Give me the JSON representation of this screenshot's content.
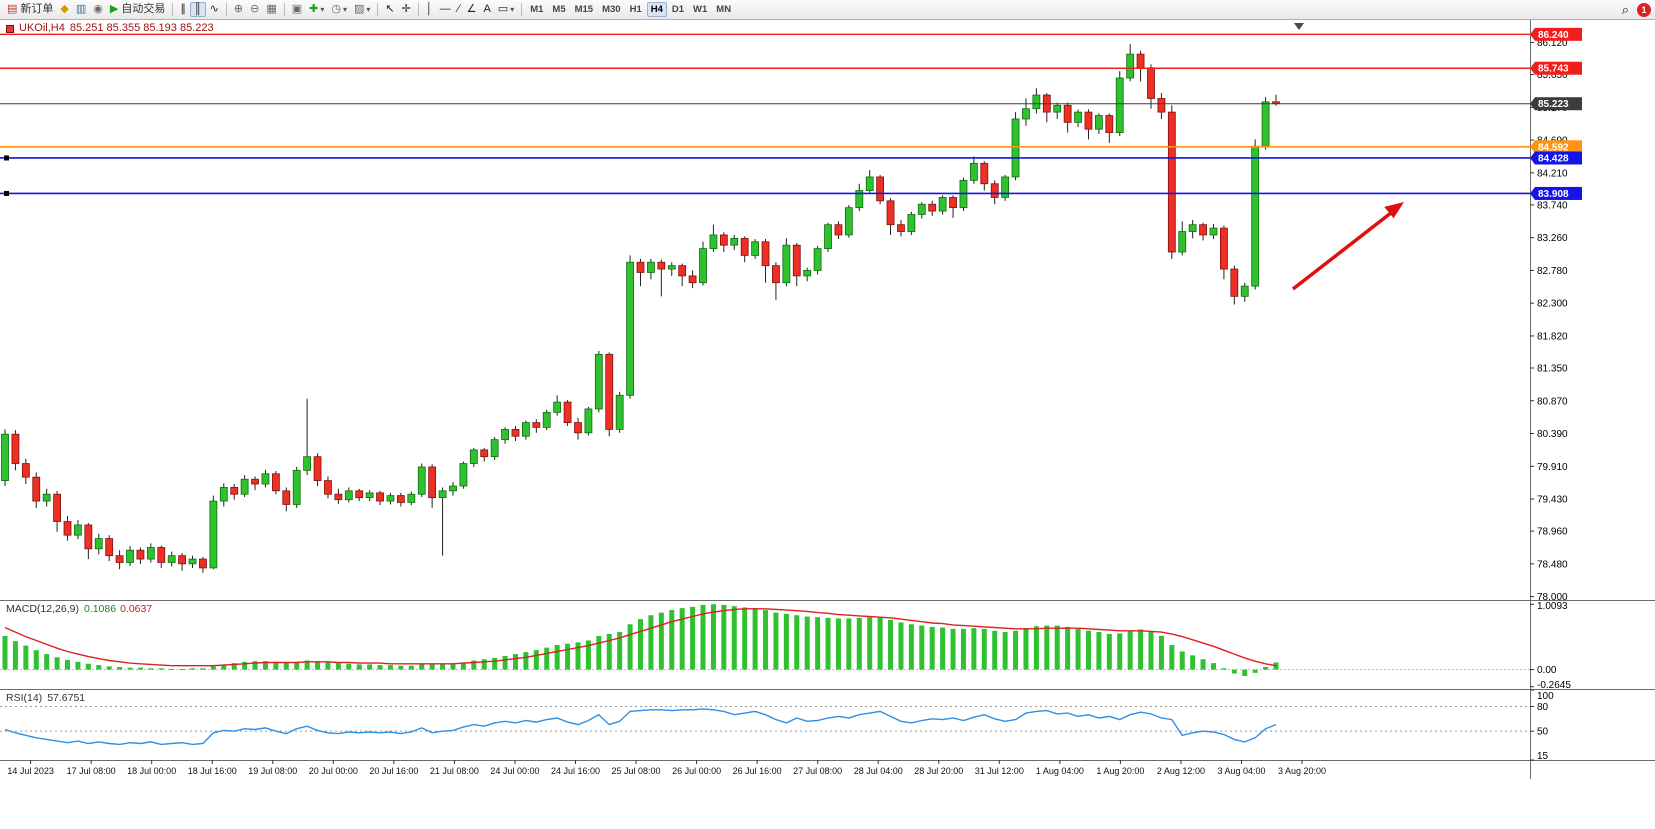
{
  "toolbar": {
    "new_order_label": "新订单",
    "autotrading_label": "自动交易",
    "timeframes": [
      "M1",
      "M5",
      "M15",
      "M30",
      "H1",
      "H4",
      "D1",
      "W1",
      "MN"
    ],
    "active_timeframe": "H4",
    "notification_count": "1",
    "icons": {
      "new_order": "▤",
      "metaeditor": "◆",
      "charts": "▥",
      "community": "◉",
      "autotrading": "▶",
      "bar_chart": "∥",
      "candle_chart": "║",
      "line_chart": "∿",
      "zoom_in": "⊕",
      "zoom_out": "⊖",
      "grid": "▦",
      "tile_windows": "▣",
      "indicators": "✚",
      "periods": "◷",
      "templates": "▨",
      "cursor": "↖",
      "crosshair": "✛",
      "vline": "│",
      "hline": "—",
      "trendline": "∕",
      "channel": "∠",
      "text": "A",
      "shapes": "▭",
      "caret": "▾",
      "search": "⌕"
    }
  },
  "chart": {
    "symbol_period": "UKOil,H4",
    "ohlc": "85.251 85.355 85.193 85.223",
    "levels": [
      {
        "price": 86.24,
        "label": "86.240",
        "color": "#f21d1d",
        "width": 1.4
      },
      {
        "price": 85.743,
        "label": "85.743",
        "color": "#f21d1d",
        "width": 1.4
      },
      {
        "price": 85.223,
        "label": "85.223",
        "color": "#3c3c3c",
        "width": 1.0
      },
      {
        "price": 84.592,
        "label": "84.592",
        "color": "#ff9414",
        "width": 1.6
      },
      {
        "price": 84.428,
        "label": "84.428",
        "color": "#1414e8",
        "width": 1.6,
        "handles": true
      },
      {
        "price": 83.908,
        "label": "83.908",
        "color": "#1414e8",
        "width": 1.6,
        "handles": true
      }
    ],
    "price_axis_labels": [
      "86.120",
      "85.650",
      "85.170",
      "84.690",
      "84.210",
      "83.740",
      "83.260",
      "82.780",
      "82.300",
      "81.820",
      "81.350",
      "80.870",
      "80.390",
      "79.910",
      "79.430",
      "78.960",
      "78.480",
      "78.000"
    ],
    "time_axis_labels": [
      "14 Jul 2023",
      "17 Jul 08:00",
      "18 Jul 00:00",
      "18 Jul 16:00",
      "19 Jul 08:00",
      "20 Jul 00:00",
      "20 Jul 16:00",
      "21 Jul 08:00",
      "24 Jul 00:00",
      "24 Jul 16:00",
      "25 Jul 08:00",
      "26 Jul 00:00",
      "26 Jul 16:00",
      "27 Jul 08:00",
      "28 Jul 04:00",
      "28 Jul 20:00",
      "31 Jul 12:00",
      "1 Aug 04:00",
      "1 Aug 20:00",
      "2 Aug 12:00",
      "3 Aug 04:00",
      "3 Aug 20:00"
    ]
  },
  "chart_data": {
    "type": "candlestick",
    "symbol": "UKOil",
    "period": "H4",
    "price_range": [
      77.95,
      86.45
    ],
    "up_color": "#2fc12f",
    "down_color": "#ee3024",
    "candles": [
      [
        79.7,
        80.45,
        79.62,
        80.38
      ],
      [
        80.38,
        80.44,
        79.85,
        79.95
      ],
      [
        79.95,
        80.02,
        79.65,
        79.75
      ],
      [
        79.75,
        79.82,
        79.3,
        79.4
      ],
      [
        79.4,
        79.58,
        79.32,
        79.5
      ],
      [
        79.5,
        79.55,
        78.95,
        79.1
      ],
      [
        79.1,
        79.18,
        78.82,
        78.9
      ],
      [
        78.9,
        79.12,
        78.84,
        79.05
      ],
      [
        79.05,
        79.08,
        78.55,
        78.7
      ],
      [
        78.7,
        78.92,
        78.62,
        78.85
      ],
      [
        78.85,
        78.9,
        78.52,
        78.6
      ],
      [
        78.6,
        78.68,
        78.4,
        78.5
      ],
      [
        78.5,
        78.74,
        78.45,
        78.68
      ],
      [
        78.68,
        78.72,
        78.48,
        78.55
      ],
      [
        78.55,
        78.78,
        78.5,
        78.72
      ],
      [
        78.72,
        78.75,
        78.42,
        78.5
      ],
      [
        78.5,
        78.66,
        78.44,
        78.6
      ],
      [
        78.6,
        78.64,
        78.38,
        78.48
      ],
      [
        78.48,
        78.6,
        78.42,
        78.55
      ],
      [
        78.55,
        78.58,
        78.35,
        78.42
      ],
      [
        78.42,
        79.48,
        78.4,
        79.4
      ],
      [
        79.4,
        79.66,
        79.32,
        79.6
      ],
      [
        79.6,
        79.65,
        79.42,
        79.5
      ],
      [
        79.5,
        79.78,
        79.46,
        79.72
      ],
      [
        79.72,
        79.76,
        79.56,
        79.65
      ],
      [
        79.65,
        79.86,
        79.6,
        79.8
      ],
      [
        79.8,
        79.84,
        79.5,
        79.55
      ],
      [
        79.55,
        79.6,
        79.25,
        79.35
      ],
      [
        79.35,
        79.9,
        79.3,
        79.85
      ],
      [
        79.85,
        80.9,
        79.78,
        80.05
      ],
      [
        80.05,
        80.1,
        79.62,
        79.7
      ],
      [
        79.7,
        79.76,
        79.44,
        79.5
      ],
      [
        79.5,
        79.58,
        79.36,
        79.42
      ],
      [
        79.42,
        79.6,
        79.38,
        79.55
      ],
      [
        79.55,
        79.58,
        79.4,
        79.45
      ],
      [
        79.45,
        79.56,
        79.4,
        79.52
      ],
      [
        79.52,
        79.55,
        79.34,
        79.4
      ],
      [
        79.4,
        79.52,
        79.35,
        79.48
      ],
      [
        79.48,
        79.52,
        79.32,
        79.38
      ],
      [
        79.38,
        79.54,
        79.34,
        79.5
      ],
      [
        79.5,
        79.95,
        79.46,
        79.9
      ],
      [
        79.9,
        79.94,
        79.3,
        79.45
      ],
      [
        79.45,
        79.6,
        78.6,
        79.55
      ],
      [
        79.55,
        79.68,
        79.48,
        79.62
      ],
      [
        79.62,
        79.98,
        79.58,
        79.95
      ],
      [
        79.95,
        80.18,
        79.9,
        80.15
      ],
      [
        80.15,
        80.18,
        79.98,
        80.05
      ],
      [
        80.05,
        80.34,
        80.0,
        80.3
      ],
      [
        80.3,
        80.48,
        80.24,
        80.45
      ],
      [
        80.45,
        80.5,
        80.28,
        80.35
      ],
      [
        80.35,
        80.58,
        80.3,
        80.55
      ],
      [
        80.55,
        80.6,
        80.4,
        80.48
      ],
      [
        80.48,
        80.74,
        80.44,
        80.7
      ],
      [
        80.7,
        80.95,
        80.65,
        80.85
      ],
      [
        80.85,
        80.88,
        80.5,
        80.55
      ],
      [
        80.55,
        80.62,
        80.3,
        80.4
      ],
      [
        80.4,
        80.78,
        80.36,
        80.75
      ],
      [
        80.75,
        81.6,
        80.7,
        81.55
      ],
      [
        81.55,
        81.58,
        80.35,
        80.45
      ],
      [
        80.45,
        81.0,
        80.4,
        80.95
      ],
      [
        80.95,
        83.0,
        80.9,
        82.9
      ],
      [
        82.9,
        82.95,
        82.55,
        82.75
      ],
      [
        82.75,
        82.95,
        82.65,
        82.9
      ],
      [
        82.9,
        82.94,
        82.4,
        82.8
      ],
      [
        82.8,
        82.9,
        82.7,
        82.85
      ],
      [
        82.85,
        82.88,
        82.55,
        82.7
      ],
      [
        82.7,
        82.78,
        82.52,
        82.6
      ],
      [
        82.6,
        83.2,
        82.56,
        83.1
      ],
      [
        83.1,
        83.45,
        83.05,
        83.3
      ],
      [
        83.3,
        83.34,
        83.05,
        83.15
      ],
      [
        83.15,
        83.3,
        83.08,
        83.25
      ],
      [
        83.25,
        83.28,
        82.9,
        83.0
      ],
      [
        83.0,
        83.24,
        82.95,
        83.2
      ],
      [
        83.2,
        83.24,
        82.6,
        82.85
      ],
      [
        82.85,
        82.9,
        82.35,
        82.6
      ],
      [
        82.6,
        83.25,
        82.55,
        83.15
      ],
      [
        83.15,
        83.18,
        82.55,
        82.7
      ],
      [
        82.7,
        82.82,
        82.62,
        82.78
      ],
      [
        82.78,
        83.14,
        82.72,
        83.1
      ],
      [
        83.1,
        83.48,
        83.05,
        83.45
      ],
      [
        83.45,
        83.5,
        83.24,
        83.3
      ],
      [
        83.3,
        83.74,
        83.26,
        83.7
      ],
      [
        83.7,
        84.05,
        83.65,
        83.95
      ],
      [
        83.95,
        84.25,
        83.9,
        84.15
      ],
      [
        84.15,
        84.18,
        83.75,
        83.8
      ],
      [
        83.8,
        83.84,
        83.3,
        83.45
      ],
      [
        83.45,
        83.52,
        83.28,
        83.35
      ],
      [
        83.35,
        83.64,
        83.3,
        83.6
      ],
      [
        83.6,
        83.78,
        83.54,
        83.75
      ],
      [
        83.75,
        83.8,
        83.58,
        83.65
      ],
      [
        83.65,
        83.88,
        83.6,
        83.85
      ],
      [
        83.85,
        83.88,
        83.55,
        83.7
      ],
      [
        83.7,
        84.14,
        83.65,
        84.1
      ],
      [
        84.1,
        84.45,
        84.05,
        84.35
      ],
      [
        84.35,
        84.38,
        83.95,
        84.05
      ],
      [
        84.05,
        84.1,
        83.75,
        83.85
      ],
      [
        83.85,
        84.18,
        83.8,
        84.15
      ],
      [
        84.15,
        85.1,
        84.1,
        85.0
      ],
      [
        85.0,
        85.3,
        84.9,
        85.15
      ],
      [
        85.15,
        85.45,
        85.08,
        85.35
      ],
      [
        85.35,
        85.38,
        84.95,
        85.1
      ],
      [
        85.1,
        85.24,
        85.0,
        85.2
      ],
      [
        85.2,
        85.24,
        84.8,
        84.95
      ],
      [
        84.95,
        85.14,
        84.88,
        85.1
      ],
      [
        85.1,
        85.14,
        84.7,
        84.85
      ],
      [
        84.85,
        85.08,
        84.78,
        85.05
      ],
      [
        85.05,
        85.08,
        84.65,
        84.8
      ],
      [
        84.8,
        85.7,
        84.75,
        85.6
      ],
      [
        85.6,
        86.1,
        85.55,
        85.95
      ],
      [
        85.95,
        86.0,
        85.55,
        85.75
      ],
      [
        85.75,
        85.8,
        85.15,
        85.3
      ],
      [
        85.3,
        85.38,
        85.0,
        85.1
      ],
      [
        85.1,
        85.2,
        82.95,
        83.05
      ],
      [
        83.05,
        83.5,
        83.0,
        83.35
      ],
      [
        83.35,
        83.52,
        83.25,
        83.45
      ],
      [
        83.45,
        83.48,
        83.22,
        83.3
      ],
      [
        83.3,
        83.46,
        83.24,
        83.4
      ],
      [
        83.4,
        83.44,
        82.65,
        82.8
      ],
      [
        82.8,
        82.85,
        82.28,
        82.4
      ],
      [
        82.4,
        82.6,
        82.32,
        82.55
      ],
      [
        82.55,
        84.7,
        82.5,
        84.6
      ],
      [
        84.6,
        85.32,
        84.55,
        85.25
      ],
      [
        85.251,
        85.355,
        85.193,
        85.223
      ]
    ],
    "macd": {
      "label": "MACD(12,26,9)",
      "main_value": "0.1086",
      "signal_value": "0.0637",
      "axis_labels": [
        "1.0093",
        "0.00",
        "-0.2645"
      ],
      "range": [
        -0.3,
        1.06
      ],
      "histogram_color": "#2fc12f",
      "signal_color": "#e02020",
      "histogram": [
        0.52,
        0.44,
        0.37,
        0.3,
        0.24,
        0.19,
        0.15,
        0.12,
        0.09,
        0.07,
        0.05,
        0.04,
        0.03,
        0.03,
        0.02,
        0.02,
        0.01,
        0.01,
        0.02,
        0.02,
        0.05,
        0.08,
        0.1,
        0.12,
        0.13,
        0.13,
        0.12,
        0.11,
        0.12,
        0.14,
        0.13,
        0.12,
        0.1,
        0.09,
        0.08,
        0.08,
        0.07,
        0.07,
        0.06,
        0.06,
        0.08,
        0.09,
        0.08,
        0.09,
        0.11,
        0.14,
        0.16,
        0.18,
        0.21,
        0.24,
        0.27,
        0.3,
        0.34,
        0.38,
        0.4,
        0.42,
        0.45,
        0.52,
        0.55,
        0.58,
        0.7,
        0.78,
        0.84,
        0.88,
        0.92,
        0.95,
        0.97,
        1.0,
        1.01,
        1.0,
        0.98,
        0.96,
        0.95,
        0.92,
        0.88,
        0.86,
        0.84,
        0.82,
        0.81,
        0.8,
        0.79,
        0.79,
        0.8,
        0.81,
        0.8,
        0.77,
        0.73,
        0.7,
        0.68,
        0.66,
        0.65,
        0.63,
        0.63,
        0.64,
        0.63,
        0.6,
        0.58,
        0.6,
        0.64,
        0.67,
        0.68,
        0.68,
        0.66,
        0.63,
        0.6,
        0.58,
        0.55,
        0.56,
        0.6,
        0.62,
        0.58,
        0.52,
        0.38,
        0.28,
        0.22,
        0.16,
        0.1,
        0.02,
        -0.06,
        -0.1,
        -0.05,
        0.04,
        0.11
      ],
      "signal": [
        0.65,
        0.58,
        0.51,
        0.45,
        0.39,
        0.33,
        0.28,
        0.24,
        0.2,
        0.17,
        0.14,
        0.12,
        0.1,
        0.09,
        0.08,
        0.07,
        0.06,
        0.06,
        0.06,
        0.06,
        0.06,
        0.07,
        0.08,
        0.09,
        0.1,
        0.11,
        0.11,
        0.11,
        0.11,
        0.12,
        0.12,
        0.12,
        0.11,
        0.11,
        0.1,
        0.1,
        0.1,
        0.09,
        0.09,
        0.09,
        0.09,
        0.09,
        0.09,
        0.09,
        0.1,
        0.11,
        0.12,
        0.13,
        0.15,
        0.17,
        0.19,
        0.22,
        0.25,
        0.28,
        0.31,
        0.34,
        0.37,
        0.41,
        0.45,
        0.49,
        0.54,
        0.59,
        0.64,
        0.69,
        0.74,
        0.78,
        0.82,
        0.86,
        0.89,
        0.91,
        0.93,
        0.94,
        0.94,
        0.94,
        0.93,
        0.92,
        0.91,
        0.9,
        0.88,
        0.87,
        0.85,
        0.84,
        0.83,
        0.82,
        0.81,
        0.8,
        0.78,
        0.76,
        0.74,
        0.72,
        0.71,
        0.69,
        0.68,
        0.67,
        0.66,
        0.65,
        0.64,
        0.63,
        0.63,
        0.63,
        0.64,
        0.64,
        0.64,
        0.64,
        0.63,
        0.62,
        0.61,
        0.6,
        0.6,
        0.6,
        0.59,
        0.58,
        0.55,
        0.51,
        0.46,
        0.41,
        0.36,
        0.3,
        0.24,
        0.18,
        0.13,
        0.09,
        0.06
      ]
    },
    "rsi": {
      "label": "RSI(14)",
      "value": "57.6751",
      "axis_labels": [
        100,
        80,
        50,
        15
      ],
      "range": [
        15,
        100
      ],
      "levels": [
        80,
        50
      ],
      "color": "#2e8fe8",
      "series": [
        52,
        48,
        45,
        42,
        40,
        38,
        36,
        38,
        35,
        37,
        35,
        34,
        36,
        35,
        37,
        34,
        35,
        36,
        34,
        35,
        48,
        51,
        50,
        53,
        52,
        54,
        50,
        47,
        53,
        56,
        51,
        48,
        47,
        49,
        48,
        49,
        48,
        49,
        47,
        49,
        54,
        48,
        50,
        51,
        55,
        58,
        56,
        60,
        62,
        60,
        63,
        61,
        64,
        66,
        61,
        58,
        63,
        70,
        58,
        62,
        74,
        75,
        76,
        76,
        75,
        76,
        76,
        77,
        76,
        74,
        70,
        72,
        74,
        70,
        64,
        60,
        66,
        62,
        63,
        66,
        68,
        66,
        70,
        72,
        74,
        68,
        62,
        60,
        63,
        65,
        64,
        66,
        63,
        67,
        70,
        65,
        62,
        64,
        72,
        74,
        75,
        71,
        72,
        68,
        70,
        66,
        68,
        64,
        70,
        73,
        71,
        66,
        64,
        45,
        48,
        50,
        49,
        46,
        40,
        37,
        42,
        53,
        58
      ]
    },
    "annotations": [
      {
        "type": "arrow",
        "color": "#e01010",
        "direction": "up-right"
      }
    ]
  }
}
